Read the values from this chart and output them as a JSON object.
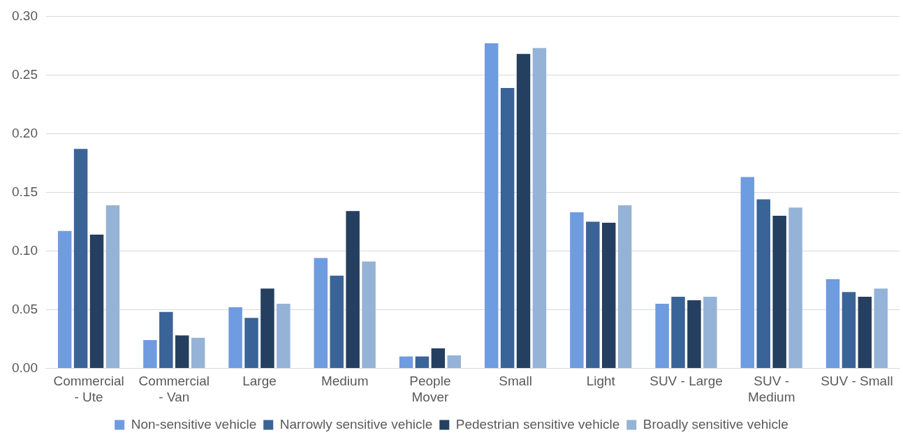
{
  "chart_data": {
    "type": "bar",
    "categories": [
      "Commercial - Ute",
      "Commercial - Van",
      "Large",
      "Medium",
      "People Mover",
      "Small",
      "Light",
      "SUV - Large",
      "SUV - Medium",
      "SUV - Small"
    ],
    "series": [
      {
        "name": "Non-sensitive vehicle",
        "color": "#6f9be0",
        "values": [
          0.117,
          0.024,
          0.052,
          0.094,
          0.01,
          0.277,
          0.133,
          0.055,
          0.163,
          0.076
        ]
      },
      {
        "name": "Narrowly sensitive vehicle",
        "color": "#3a6398",
        "values": [
          0.187,
          0.048,
          0.043,
          0.079,
          0.01,
          0.239,
          0.125,
          0.061,
          0.144,
          0.065
        ]
      },
      {
        "name": "Pedestrian sensitive vehicle",
        "color": "#243f60",
        "values": [
          0.114,
          0.028,
          0.068,
          0.134,
          0.017,
          0.268,
          0.124,
          0.058,
          0.13,
          0.061
        ]
      },
      {
        "name": "Broadly sensitive vehicle",
        "color": "#95b3d7",
        "values": [
          0.139,
          0.026,
          0.055,
          0.091,
          0.011,
          0.273,
          0.139,
          0.061,
          0.137,
          0.068
        ]
      }
    ],
    "ylim": [
      0,
      0.3
    ],
    "yticks": [
      {
        "value": 0,
        "label": "0.00"
      },
      {
        "value": 0.05,
        "label": "0.05"
      },
      {
        "value": 0.1,
        "label": "0.10"
      },
      {
        "value": 0.15,
        "label": "0.15"
      },
      {
        "value": 0.2,
        "label": "0.20"
      },
      {
        "value": 0.25,
        "label": "0.25"
      },
      {
        "value": 0.3,
        "label": "0.30"
      }
    ],
    "grid": "y",
    "legend": "bottom"
  }
}
